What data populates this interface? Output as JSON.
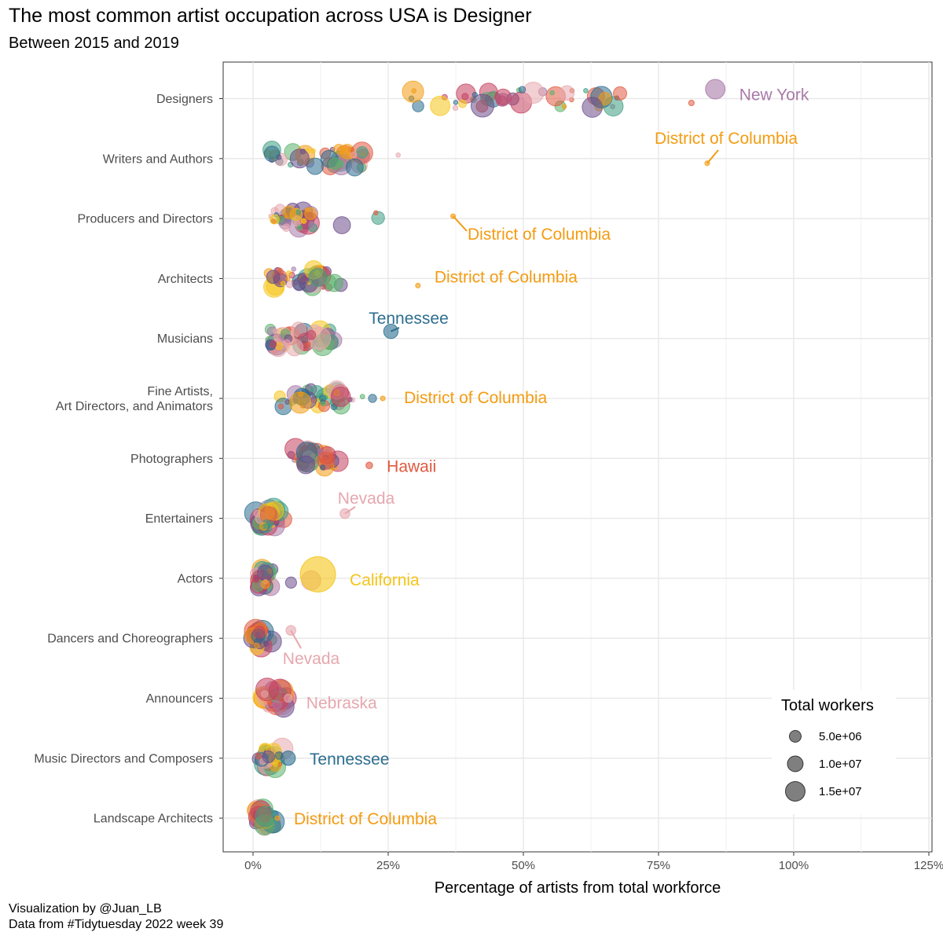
{
  "title": "The most common artist occupation across USA is Designer",
  "subtitle": "Between 2015 and 2019",
  "caption_line1": "Visualization by @Juan_LB",
  "caption_line2": "Data from #Tidytuesday 2022 week 39",
  "chart_data": {
    "type": "scatter",
    "xlabel": "Percentage of artists from total workforce",
    "ylabel": "",
    "xlim": [
      -5,
      125
    ],
    "x_ticks": [
      0,
      25,
      50,
      75,
      100,
      125
    ],
    "x_tick_labels": [
      "0%",
      "25%",
      "50%",
      "75%",
      "100%",
      "125%"
    ],
    "grid": true,
    "categories": [
      "Designers",
      "Writers and Authors",
      "Producers and Directors",
      "Architects",
      "Musicians",
      "Fine Artists,\nArt Directors, and Animators",
      "Photographers",
      "Entertainers",
      "Actors",
      "Dancers and Choreographers",
      "Announcers",
      "Music Directors and Composers",
      "Landscape Architects"
    ],
    "distributions": [
      {
        "category": "Designers",
        "min": 24,
        "max": 86,
        "center": 49
      },
      {
        "category": "Writers and Authors",
        "min": 1.5,
        "max": 27,
        "center": 12
      },
      {
        "category": "Producers and Directors",
        "min": 2,
        "max": 27,
        "center": 7
      },
      {
        "category": "Architects",
        "min": 2,
        "max": 18,
        "center": 9
      },
      {
        "category": "Musicians",
        "min": 2,
        "max": 17,
        "center": 9
      },
      {
        "category": "Fine Artists,\nArt Directors, and Animators",
        "min": 3,
        "max": 24,
        "center": 11
      },
      {
        "category": "Photographers",
        "min": 7,
        "max": 17,
        "center": 11
      },
      {
        "category": "Entertainers",
        "min": 0.5,
        "max": 7,
        "center": 2.5
      },
      {
        "category": "Actors",
        "min": 0.5,
        "max": 11,
        "center": 2
      },
      {
        "category": "Dancers and Choreographers",
        "min": 0,
        "max": 4,
        "center": 1
      },
      {
        "category": "Announcers",
        "min": 2,
        "max": 7,
        "center": 4
      },
      {
        "category": "Music Directors and Composers",
        "min": 1,
        "max": 6,
        "center": 3
      },
      {
        "category": "Landscape Architects",
        "min": 0.5,
        "max": 4,
        "center": 2
      }
    ],
    "highlights": [
      {
        "category": "Designers",
        "state": "New York",
        "x": 85.5,
        "size": 12000000.0,
        "color": "#a87aa8"
      },
      {
        "category": "Designers",
        "state": "District of Columbia",
        "x": 84,
        "size": 700000.0,
        "color": "#f39c12",
        "pointOnRow": 1
      },
      {
        "category": "Producers and Directors",
        "state": "District of Columbia",
        "x": 37,
        "size": 700000.0,
        "color": "#f39c12"
      },
      {
        "category": "Architects",
        "state": "District of Columbia",
        "x": 30.5,
        "size": 700000.0,
        "color": "#f39c12"
      },
      {
        "category": "Musicians",
        "state": "Tennessee",
        "x": 25.5,
        "size": 6500000.0,
        "color": "#2c6e8f"
      },
      {
        "category": "Fine Artists,\nArt Directors, and Animators",
        "state": "District of Columbia",
        "x": 24,
        "size": 700000.0,
        "color": "#f39c12"
      },
      {
        "category": "Photographers",
        "state": "Hawaii",
        "x": 21.5,
        "size": 1400000.0,
        "color": "#e0593f"
      },
      {
        "category": "Entertainers",
        "state": "Nevada",
        "x": 17,
        "size": 3000000.0,
        "color": "#e6a7ad"
      },
      {
        "category": "Actors",
        "state": "California",
        "x": 12,
        "size": 39000000.0,
        "color": "#f5c518"
      },
      {
        "category": "Dancers and Choreographers",
        "state": "Nevada",
        "x": 7,
        "size": 3000000.0,
        "color": "#e6a7ad"
      },
      {
        "category": "Announcers",
        "state": "Nebraska",
        "x": 6.5,
        "size": 2000000.0,
        "color": "#e6a7ad"
      },
      {
        "category": "Music Directors and Composers",
        "state": "Tennessee",
        "x": 6.5,
        "size": 6500000.0,
        "color": "#2c6e8f"
      },
      {
        "category": "Landscape Architects",
        "state": "District of Columbia",
        "x": 4.5,
        "size": 700000.0,
        "color": "#f39c12"
      }
    ],
    "point_palette": [
      "#f5c518",
      "#f39c12",
      "#e0593f",
      "#c4405f",
      "#e6a7ad",
      "#a87aa8",
      "#6b4c8a",
      "#2c6e8f",
      "#3e9e83",
      "#5ab26b"
    ],
    "legend": {
      "title": "Total workers",
      "placement": "bottom-right inside",
      "entries": [
        {
          "label": "5.0e+06",
          "value": 5000000
        },
        {
          "label": "1.0e+07",
          "value": 10000000
        },
        {
          "label": "1.5e+07",
          "value": 15000000
        }
      ]
    }
  }
}
